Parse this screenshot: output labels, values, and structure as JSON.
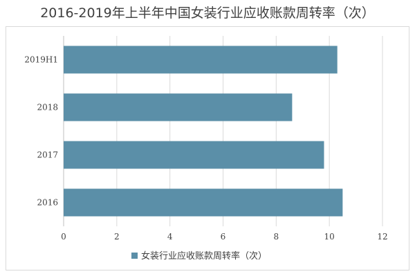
{
  "chart_data": {
    "type": "bar",
    "orientation": "horizontal",
    "title": "2016-2019年上半年中国女装行业应收账款周转率（次）",
    "categories": [
      "2019H1",
      "2018",
      "2017",
      "2016"
    ],
    "series": [
      {
        "name": "女装行业应收账款周转率（次）",
        "values": [
          10.3,
          8.6,
          9.8,
          10.5
        ],
        "color": "#5b8fa8"
      }
    ],
    "xlabel": "",
    "ylabel": "",
    "xlim": [
      0,
      12
    ],
    "xticks": [
      0,
      2,
      4,
      6,
      8,
      10,
      12
    ],
    "grid": true,
    "legend_position": "bottom"
  }
}
